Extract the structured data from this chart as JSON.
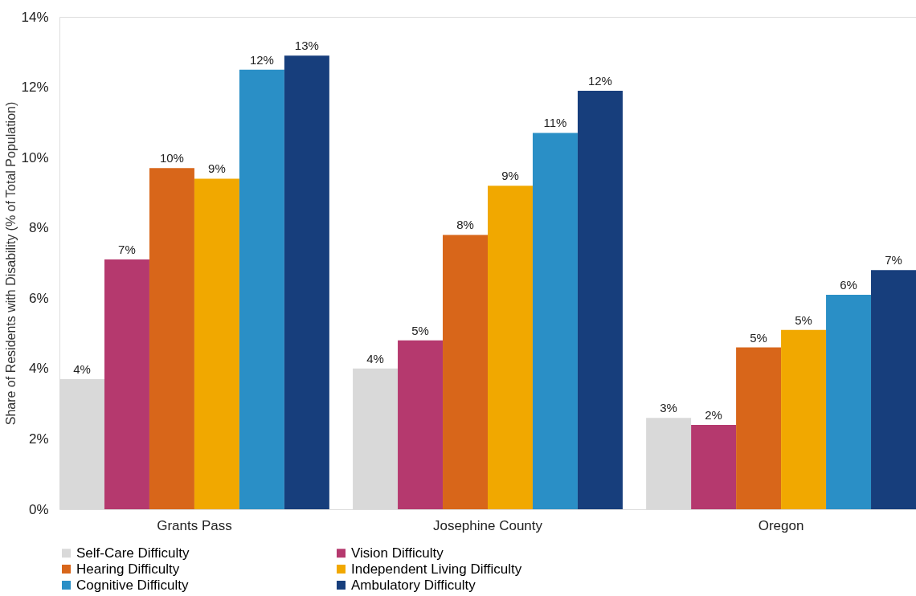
{
  "chart_data": {
    "type": "bar",
    "ylabel": "Share of Residents with Disability (% of Total Population)",
    "categories": [
      "Grants Pass",
      "Josephine County",
      "Oregon"
    ],
    "series": [
      {
        "name": "Self-Care Difficulty",
        "color": "#d9d9d9",
        "values": [
          3.7,
          4.0,
          2.6
        ],
        "value_labels": [
          "4%",
          "4%",
          "3%"
        ]
      },
      {
        "name": "Vision Difficulty",
        "color": "#b5396e",
        "values": [
          7.1,
          4.8,
          2.4
        ],
        "value_labels": [
          "7%",
          "5%",
          "2%"
        ]
      },
      {
        "name": "Hearing Difficulty",
        "color": "#d8661a",
        "values": [
          9.7,
          7.8,
          4.6
        ],
        "value_labels": [
          "10%",
          "8%",
          "5%"
        ]
      },
      {
        "name": "Independent Living Difficulty",
        "color": "#f1a800",
        "values": [
          9.4,
          9.2,
          5.1
        ],
        "value_labels": [
          "9%",
          "9%",
          "5%"
        ]
      },
      {
        "name": "Cognitive Difficulty",
        "color": "#2a8fc6",
        "values": [
          12.5,
          10.7,
          6.1
        ],
        "value_labels": [
          "12%",
          "11%",
          "6%"
        ]
      },
      {
        "name": "Ambulatory Difficulty",
        "color": "#173e7c",
        "values": [
          12.9,
          11.9,
          6.8
        ],
        "value_labels": [
          "13%",
          "12%",
          "7%"
        ]
      }
    ],
    "ylim": [
      0,
      14
    ],
    "yticks": [
      {
        "value": 0,
        "label": "0%"
      },
      {
        "value": 2,
        "label": "2%"
      },
      {
        "value": 4,
        "label": "4%"
      },
      {
        "value": 6,
        "label": "6%"
      },
      {
        "value": 8,
        "label": "8%"
      },
      {
        "value": 10,
        "label": "10%"
      },
      {
        "value": 12,
        "label": "12%"
      },
      {
        "value": 14,
        "label": "14%"
      }
    ],
    "legend": "bottom",
    "grid": false
  }
}
